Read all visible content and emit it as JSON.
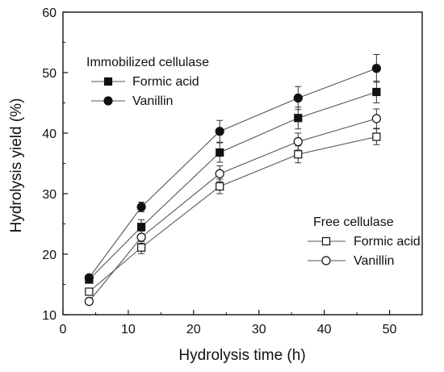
{
  "chart_data": {
    "type": "line",
    "title": "",
    "xlabel": "Hydrolysis time (h)",
    "ylabel": "Hydrolysis yield (%)",
    "xlim": [
      0,
      55
    ],
    "ylim": [
      10,
      60
    ],
    "xticks": [
      "0",
      "10",
      "20",
      "30",
      "40",
      "50"
    ],
    "yticks": [
      "10",
      "20",
      "30",
      "40",
      "50",
      "60"
    ],
    "grid": false,
    "x": [
      4,
      12,
      24,
      36,
      48
    ],
    "legend_groups": [
      {
        "title": "Immobilized cellulase",
        "placement": "top-left",
        "entries": [
          "Formic acid",
          "Vanillin"
        ]
      },
      {
        "title": "Free cellulase",
        "placement": "bottom-right",
        "entries": [
          "Formic acid",
          "Vanillin"
        ]
      }
    ],
    "series": [
      {
        "name": "Formic acid",
        "group": "Immobilized cellulase",
        "marker": "filled-square",
        "color": "#111111",
        "values": [
          15.8,
          24.5,
          36.8,
          42.5,
          46.8
        ],
        "errors": [
          0.6,
          1.2,
          1.6,
          1.8,
          1.8
        ]
      },
      {
        "name": "Vanillin",
        "group": "Immobilized cellulase",
        "marker": "filled-circle",
        "color": "#111111",
        "values": [
          16.1,
          27.8,
          40.3,
          45.8,
          50.7
        ],
        "errors": [
          0.5,
          0.8,
          1.8,
          1.9,
          2.3
        ]
      },
      {
        "name": "Formic acid",
        "group": "Free cellulase",
        "marker": "open-square",
        "color": "#111111",
        "values": [
          13.8,
          21.1,
          31.2,
          36.5,
          39.4
        ],
        "errors": [
          0.6,
          1.0,
          1.2,
          1.4,
          1.3
        ]
      },
      {
        "name": "Vanillin",
        "group": "Free cellulase",
        "marker": "open-circle",
        "color": "#111111",
        "values": [
          12.2,
          22.8,
          33.3,
          38.6,
          42.4
        ],
        "errors": [
          0.5,
          1.0,
          1.3,
          1.4,
          1.6
        ]
      }
    ]
  }
}
